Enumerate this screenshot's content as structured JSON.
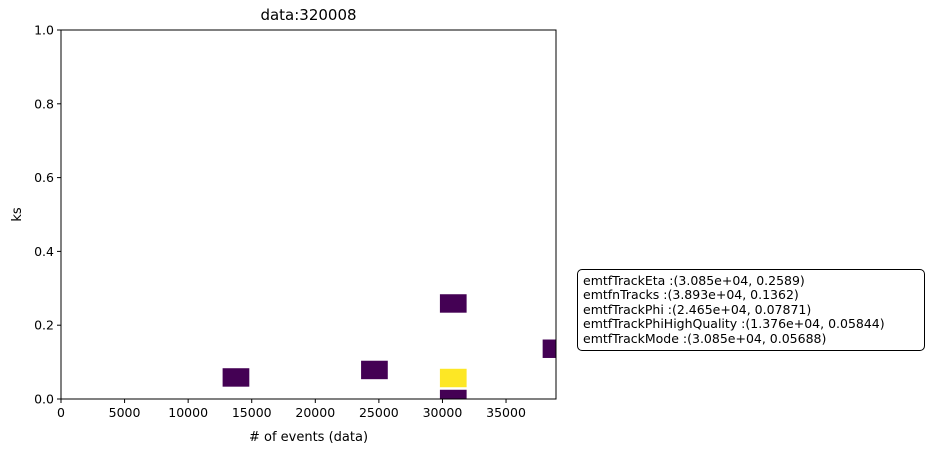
{
  "chart_data": {
    "type": "heatmap",
    "title": "data:320008",
    "xlabel": "# of events (data)",
    "ylabel": "ks",
    "xlim": [
      0,
      38930
    ],
    "ylim": [
      0,
      1.0
    ],
    "xticks": [
      0,
      5000,
      10000,
      15000,
      20000,
      25000,
      30000,
      35000
    ],
    "xtick_labels": [
      "0",
      "5000",
      "10000",
      "15000",
      "20000",
      "25000",
      "30000",
      "35000"
    ],
    "yticks": [
      0.0,
      0.2,
      0.4,
      0.6,
      0.8,
      1.0
    ],
    "ytick_labels": [
      "0.0",
      "0.2",
      "0.4",
      "0.6",
      "0.8",
      "1.0"
    ],
    "grid": false,
    "colormap": "viridis",
    "bin_width": 2100,
    "bin_height": 0.05,
    "cells": [
      {
        "x": 13760,
        "y": 0.0584,
        "count": 1
      },
      {
        "x": 24650,
        "y": 0.0787,
        "count": 1
      },
      {
        "x": 30850,
        "y": 0.2589,
        "count": 1
      },
      {
        "x": 30850,
        "y": 0.0569,
        "count": 2
      },
      {
        "x": 30850,
        "y": 0.0,
        "count": 1
      },
      {
        "x": 38930,
        "y": 0.1362,
        "count": 1
      }
    ],
    "color_min": "#440154",
    "color_max": "#fde725",
    "annotations": [
      "emtfTrackEta :(3.085e+04, 0.2589)",
      "emtfnTracks :(3.893e+04, 0.1362)",
      "emtfTrackPhi :(2.465e+04, 0.07871)",
      "emtfTrackPhiHighQuality :(1.376e+04, 0.05844)",
      "emtfTrackMode :(3.085e+04, 0.05688)"
    ]
  }
}
